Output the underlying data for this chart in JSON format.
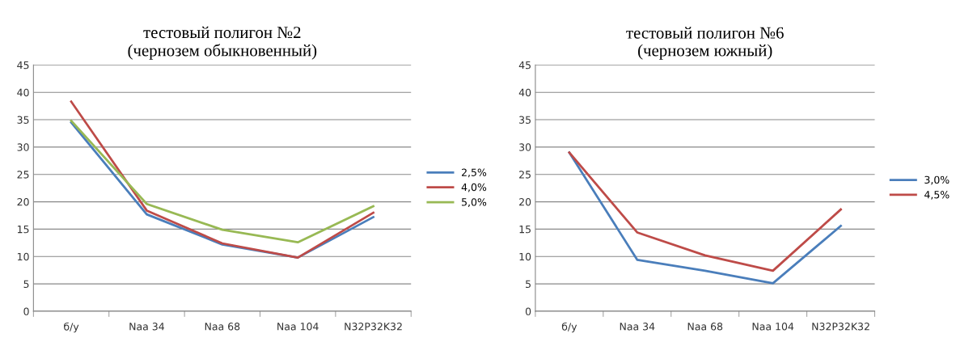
{
  "chart_data": [
    {
      "type": "line",
      "title": "тестовый полигон №2\n(чернозем обыкновенный)",
      "categories": [
        "б/у",
        "Naa 34",
        "Naa 68",
        "Naa 104",
        "N32P32K32"
      ],
      "ylim": [
        0,
        45
      ],
      "yticks": [
        0,
        5,
        10,
        15,
        20,
        25,
        30,
        35,
        40,
        45
      ],
      "grid": "y",
      "legend": "right",
      "marker": "none",
      "series": [
        {
          "name": "2,5%",
          "color": "#4a7ebb",
          "values": [
            34.5,
            17.7,
            12.2,
            9.8,
            17.2
          ]
        },
        {
          "name": "4,0%",
          "color": "#be4b48",
          "values": [
            38.3,
            18.4,
            12.4,
            9.8,
            18.0
          ]
        },
        {
          "name": "5,0%",
          "color": "#98b954",
          "values": [
            34.8,
            19.6,
            14.9,
            12.6,
            19.2
          ]
        }
      ]
    },
    {
      "type": "line",
      "title": "тестовый полигон №6\n(чернозем южный)",
      "categories": [
        "б/у",
        "Naa 34",
        "Naa 68",
        "Naa 104",
        "N32P32K32"
      ],
      "ylim": [
        0,
        45
      ],
      "yticks": [
        0,
        5,
        10,
        15,
        20,
        25,
        30,
        35,
        40,
        45
      ],
      "grid": "y",
      "legend": "right",
      "marker": "none",
      "series": [
        {
          "name": "3,0%",
          "color": "#4a7ebb",
          "values": [
            29.0,
            9.4,
            7.4,
            5.1,
            15.6
          ]
        },
        {
          "name": "4,5%",
          "color": "#be4b48",
          "values": [
            29.0,
            14.4,
            10.2,
            7.4,
            18.6
          ]
        }
      ]
    }
  ]
}
